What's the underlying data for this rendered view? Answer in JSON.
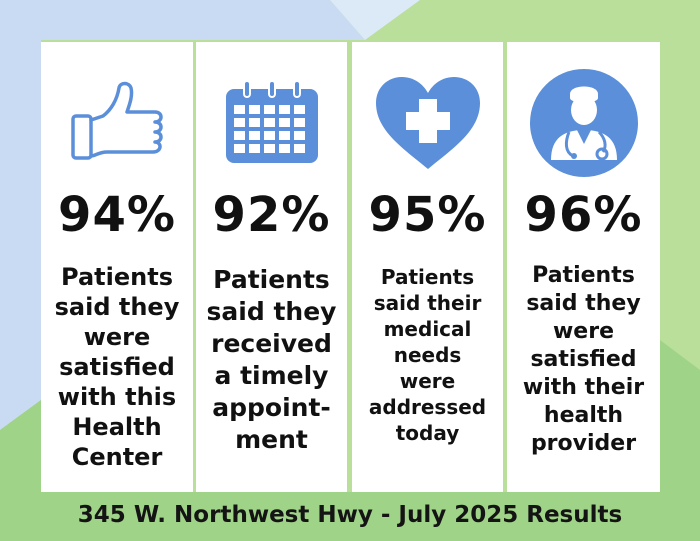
{
  "colors": {
    "accent_blue": "#5b8fd9",
    "bg_light_blue": "#c9dbf2",
    "bg_light_green": "#b9df9a",
    "bg_green": "#9fd387",
    "text": "#111111"
  },
  "cards": [
    {
      "icon": "thumbs-up-icon",
      "percent": "94%",
      "lines": [
        "Patients",
        "said they",
        "were",
        "satisfied",
        "with this",
        "Health",
        "Center"
      ]
    },
    {
      "icon": "calendar-icon",
      "percent": "92%",
      "lines": [
        "Patients",
        "said they",
        "received",
        "a timely",
        "appoint-",
        "ment"
      ]
    },
    {
      "icon": "heart-cross-icon",
      "percent": "95%",
      "lines": [
        "Patients",
        "said their",
        "medical",
        "needs",
        "were",
        "addressed",
        "today"
      ]
    },
    {
      "icon": "doctor-icon",
      "percent": "96%",
      "lines": [
        "Patients",
        "said they",
        "were",
        "satisfied",
        "with their",
        "health",
        "provider"
      ]
    }
  ],
  "footer": "345 W. Northwest Hwy - July 2025 Results"
}
